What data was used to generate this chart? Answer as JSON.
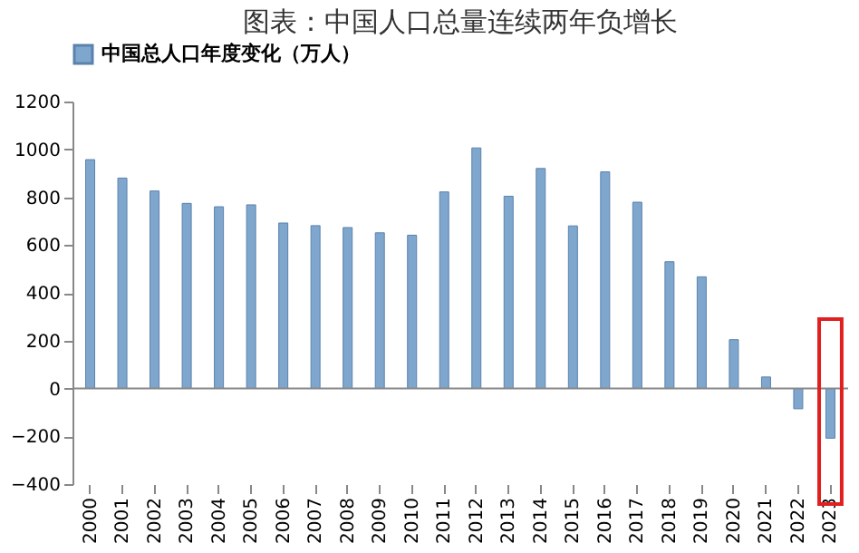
{
  "chart_data": {
    "type": "bar",
    "title": "图表：中国人口总量连续两年负增长",
    "categories": [
      "2000",
      "2001",
      "2002",
      "2003",
      "2004",
      "2005",
      "2006",
      "2007",
      "2008",
      "2009",
      "2010",
      "2011",
      "2012",
      "2013",
      "2014",
      "2015",
      "2016",
      "2017",
      "2018",
      "2019",
      "2020",
      "2021",
      "2022",
      "2023"
    ],
    "series": [
      {
        "name": "中国总人口年度变化（万人）",
        "color": "#7fa6cc",
        "values": [
          957,
          880,
          826,
          774,
          760,
          768,
          692,
          681,
          673,
          651,
          641,
          822,
          1006,
          804,
          920,
          680,
          906,
          779,
          530,
          467,
          204,
          48,
          -85,
          -208
        ]
      }
    ],
    "ylim": [
      -400,
      1200
    ],
    "yticks": [
      -400,
      -200,
      0,
      200,
      400,
      600,
      800,
      1000,
      1200
    ],
    "grid": false,
    "legend": "top",
    "ref_lines": [
      {
        "axis": "y",
        "value": 0,
        "color": "#888888"
      }
    ]
  }
}
